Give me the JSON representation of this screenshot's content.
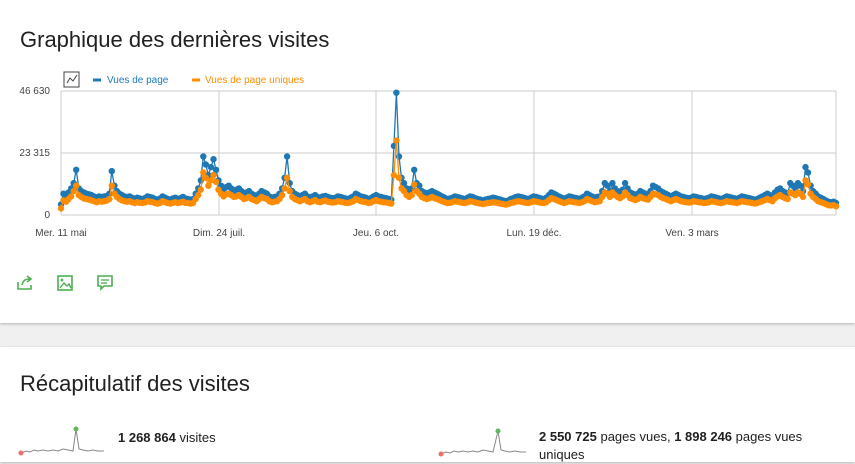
{
  "chart_card": {
    "title": "Graphique des dernières visites",
    "actions": [
      "export-icon",
      "image-icon",
      "annotation-icon"
    ]
  },
  "chart_data": {
    "type": "line",
    "title": "",
    "xlabel": "",
    "ylabel": "",
    "ylim": [
      0,
      46630
    ],
    "y_ticks": [
      "0",
      "23 315",
      "46 630"
    ],
    "x_ticks": [
      "Mer. 11 mai",
      "Dim. 24 juil.",
      "Jeu. 6 oct.",
      "Lun. 19 déc.",
      "Ven. 3 mars"
    ],
    "legend_position": "top-left",
    "grid": true,
    "colors": {
      "vues_de_page": "#1f78b4",
      "vues_de_page_uniques": "#ff8c00"
    },
    "series": [
      {
        "name": "Vues de page",
        "values": [
          4000,
          8000,
          7000,
          8500,
          10000,
          12000,
          17000,
          10000,
          9000,
          8500,
          8000,
          7800,
          7500,
          7000,
          6500,
          7000,
          6800,
          7000,
          7200,
          8000,
          16500,
          11000,
          9000,
          8000,
          7500,
          7000,
          6800,
          7000,
          6500,
          6000,
          6500,
          6200,
          6000,
          6300,
          7000,
          6800,
          6500,
          6000,
          5800,
          6200,
          7000,
          6500,
          6000,
          5800,
          6200,
          6500,
          6000,
          6300,
          6800,
          6200,
          6000,
          5800,
          6000,
          8000,
          10000,
          13000,
          22000,
          19000,
          15000,
          18000,
          21000,
          17000,
          13000,
          11000,
          9500,
          10500,
          11000,
          10000,
          9000,
          9500,
          10000,
          9000,
          8000,
          8500,
          9000,
          8000,
          7500,
          7000,
          8000,
          9000,
          8500,
          8000,
          7000,
          6500,
          6800,
          7000,
          8000,
          10000,
          14000,
          22000,
          12000,
          9000,
          8000,
          7500,
          7000,
          7500,
          8000,
          7000,
          6500,
          7000,
          7500,
          6800,
          6500,
          7000,
          7200,
          6800,
          6500,
          6300,
          6500,
          7000,
          6800,
          6500,
          6200,
          6000,
          6500,
          7000,
          8000,
          7500,
          7000,
          6800,
          6500,
          6000,
          6300,
          7000,
          7500,
          7000,
          6800,
          6500,
          6300,
          6000,
          5800,
          26000,
          46000,
          22000,
          14000,
          12000,
          10000,
          9000,
          10000,
          17000,
          12000,
          11000,
          9000,
          8500,
          8000,
          8500,
          9000,
          8500,
          8000,
          7500,
          7000,
          6500,
          6000,
          6200,
          6500,
          7000,
          6800,
          6500,
          6200,
          6000,
          6500,
          7000,
          6800,
          6300,
          6000,
          5800,
          5500,
          5800,
          6000,
          6200,
          6500,
          6300,
          6000,
          5800,
          5500,
          5200,
          5500,
          6000,
          6300,
          6800,
          7000,
          6800,
          6500,
          6200,
          6000,
          6500,
          7000,
          6800,
          6500,
          6200,
          6000,
          6500,
          7500,
          8500,
          8000,
          7500,
          7000,
          6500,
          6000,
          6500,
          7000,
          6800,
          6500,
          6300,
          6000,
          6500,
          7000,
          8000,
          7500,
          7000,
          6500,
          6800,
          7000,
          9000,
          12000,
          11000,
          9000,
          12000,
          10000,
          9000,
          8500,
          9500,
          12000,
          10000,
          8500,
          8000,
          7500,
          8000,
          9000,
          8500,
          8000,
          7800,
          9000,
          11000,
          10500,
          10000,
          9000,
          8500,
          8000,
          7500,
          7000,
          7500,
          8000,
          7500,
          7000,
          6800,
          6500,
          6300,
          6500,
          7000,
          6800,
          6500,
          6300,
          6000,
          6200,
          6500,
          7000,
          6800,
          6500,
          6200,
          6000,
          6500,
          7000,
          6800,
          6500,
          6300,
          6000,
          6500,
          7000,
          6800,
          6500,
          6300,
          6000,
          5800,
          6000,
          6500,
          7000,
          7500,
          8000,
          7500,
          7000,
          8500,
          9500,
          10000,
          9000,
          8500,
          8000,
          12000,
          11000,
          10000,
          12000,
          11000,
          9000,
          18000,
          16000,
          11000,
          9000,
          8000,
          7000,
          6500,
          6000,
          5500,
          5000,
          4800,
          5000,
          4500
        ]
      },
      {
        "name": "Vues de page uniques",
        "values": [
          2500,
          5500,
          5000,
          6000,
          7000,
          9000,
          11000,
          7500,
          6800,
          6200,
          6000,
          5800,
          5500,
          5200,
          4800,
          5200,
          5000,
          5200,
          5400,
          6000,
          11000,
          8000,
          6800,
          6000,
          5500,
          5200,
          5000,
          5200,
          4800,
          4500,
          4800,
          4600,
          4500,
          4700,
          5200,
          5000,
          4800,
          4500,
          4300,
          4600,
          5200,
          4800,
          4500,
          4300,
          4600,
          4800,
          4500,
          4700,
          5000,
          4600,
          4500,
          4300,
          4500,
          6000,
          7500,
          9500,
          16000,
          14000,
          11000,
          13000,
          15000,
          12500,
          9500,
          8000,
          7000,
          7800,
          8000,
          7500,
          6800,
          7000,
          7500,
          6800,
          6000,
          6300,
          6800,
          6000,
          5600,
          5200,
          6000,
          6800,
          6300,
          6000,
          5200,
          4800,
          5000,
          5200,
          6000,
          7500,
          10000,
          14000,
          9000,
          6800,
          6000,
          5600,
          5200,
          5600,
          6000,
          5200,
          4800,
          5200,
          5600,
          5000,
          4800,
          5200,
          5400,
          5000,
          4800,
          4700,
          4800,
          5200,
          5000,
          4800,
          4600,
          4500,
          4800,
          5200,
          6000,
          5600,
          5200,
          5000,
          4800,
          4500,
          4700,
          5200,
          5600,
          5200,
          5000,
          4800,
          4700,
          4500,
          4300,
          15000,
          28000,
          14000,
          10000,
          9000,
          7500,
          6800,
          7500,
          11500,
          9000,
          8000,
          6800,
          6300,
          6000,
          6300,
          6800,
          6300,
          6000,
          5600,
          5200,
          4800,
          4500,
          4600,
          4800,
          5200,
          5000,
          4800,
          4600,
          4500,
          4800,
          5200,
          5000,
          4700,
          4500,
          4300,
          4100,
          4300,
          4500,
          4600,
          4800,
          4700,
          4500,
          4300,
          4100,
          3900,
          4100,
          4500,
          4700,
          5000,
          5200,
          5000,
          4800,
          4600,
          4500,
          4800,
          5200,
          5000,
          4800,
          4600,
          4500,
          4800,
          5600,
          6300,
          6000,
          5600,
          5200,
          4800,
          4500,
          4800,
          5200,
          5000,
          4800,
          4700,
          4500,
          4800,
          5200,
          6000,
          5600,
          5200,
          4800,
          5000,
          5200,
          6800,
          8500,
          8000,
          6800,
          8500,
          7500,
          6800,
          6300,
          7000,
          8500,
          7500,
          6300,
          6000,
          5600,
          6000,
          6800,
          6300,
          6000,
          5800,
          6800,
          8000,
          7800,
          7500,
          6800,
          6300,
          6000,
          5600,
          5200,
          5600,
          6000,
          5600,
          5200,
          5000,
          4800,
          4700,
          4800,
          5200,
          5000,
          4800,
          4700,
          4500,
          4600,
          4800,
          5200,
          5000,
          4800,
          4600,
          4500,
          4800,
          5200,
          5000,
          4800,
          4700,
          4500,
          4800,
          5200,
          5000,
          4800,
          4700,
          4500,
          4300,
          4500,
          4800,
          5200,
          5600,
          6000,
          5600,
          5200,
          6300,
          7000,
          7500,
          6800,
          6300,
          6000,
          8500,
          8000,
          7500,
          8500,
          8000,
          6800,
          13000,
          11500,
          8000,
          6800,
          6000,
          5200,
          4800,
          4500,
          4100,
          3700,
          3600,
          3700,
          3300
        ]
      }
    ]
  },
  "summary_card": {
    "title": "Récapitulatif des visites",
    "visits_value": "1 268 864",
    "visits_label": "visites",
    "pageviews_value": "2 550 725",
    "pageviews_label": "pages vues,",
    "unique_value": "1 898 246",
    "unique_label": "pages vues uniques"
  }
}
